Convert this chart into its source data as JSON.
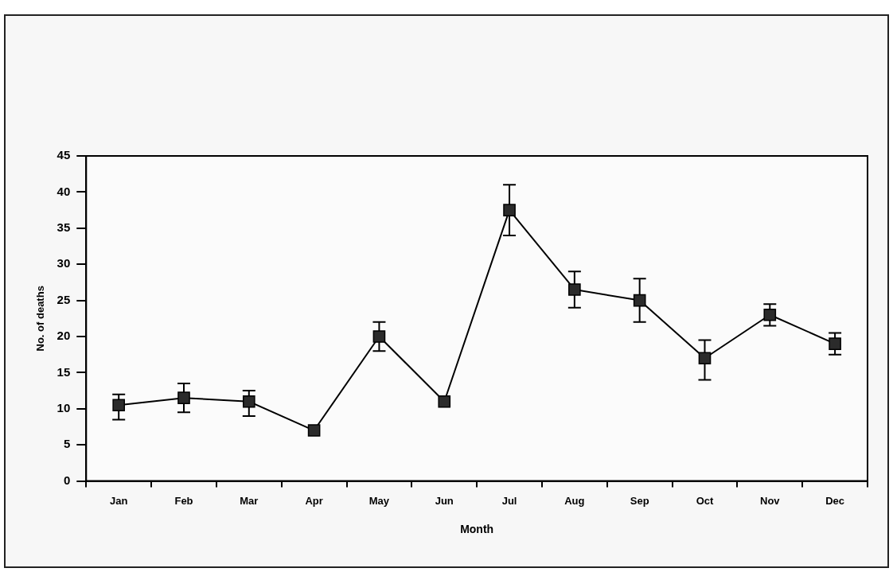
{
  "chart_data": {
    "type": "line",
    "xlabel": "Month",
    "ylabel": "No. of deaths",
    "categories": [
      "Jan",
      "Feb",
      "Mar",
      "Apr",
      "May",
      "Jun",
      "Jul",
      "Aug",
      "Sep",
      "Oct",
      "Nov",
      "Dec"
    ],
    "values": [
      10.5,
      11.5,
      11,
      7,
      20,
      11,
      37.5,
      26.5,
      25,
      17,
      23,
      19
    ],
    "errors": [
      [
        8.5,
        12
      ],
      [
        9.5,
        13.5
      ],
      [
        9,
        12.5
      ],
      null,
      [
        18,
        22
      ],
      null,
      [
        34,
        41
      ],
      [
        24,
        29
      ],
      [
        22,
        28
      ],
      [
        14,
        19.5
      ],
      [
        21.5,
        24.5
      ],
      [
        17.5,
        20.5
      ]
    ],
    "color": "#2b2b2b",
    "marker": "square",
    "line_style": "solid",
    "ylim": [
      0,
      45
    ],
    "yticks": [
      0,
      5,
      10,
      15,
      20,
      25,
      30,
      35,
      40,
      45
    ],
    "grid": false,
    "legend": false
  }
}
